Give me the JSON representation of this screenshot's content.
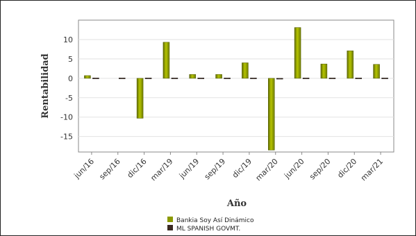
{
  "chart_data": {
    "type": "bar",
    "ylabel": "Rentabilidad",
    "xlabel": "Año",
    "ylim": [
      -19,
      15
    ],
    "yticks": [
      10,
      5,
      0,
      -5,
      -10,
      -15
    ],
    "categories": [
      "jun/16",
      "sep/16",
      "dic/16",
      "mar/19",
      "jun/19",
      "sep/19",
      "dic/19",
      "mar/20",
      "jun/20",
      "sep/20",
      "dic/20",
      "mar/21"
    ],
    "series": [
      {
        "name": "Bankia Soy Así Dinámico",
        "color": "#8c9a00",
        "values": [
          0.7,
          null,
          -10.3,
          9.3,
          1.0,
          1.0,
          4.0,
          -18.5,
          13.1,
          3.7,
          7.1,
          3.6
        ]
      },
      {
        "name": "ML SPANISH GOVMT.",
        "color": "#3b2a22",
        "values": [
          0.1,
          0.1,
          0.1,
          0.1,
          0.1,
          0.1,
          0.1,
          -0.2,
          0.1,
          0.1,
          0.1,
          0.1
        ]
      }
    ],
    "legend": "bottom-center",
    "grid": true
  }
}
